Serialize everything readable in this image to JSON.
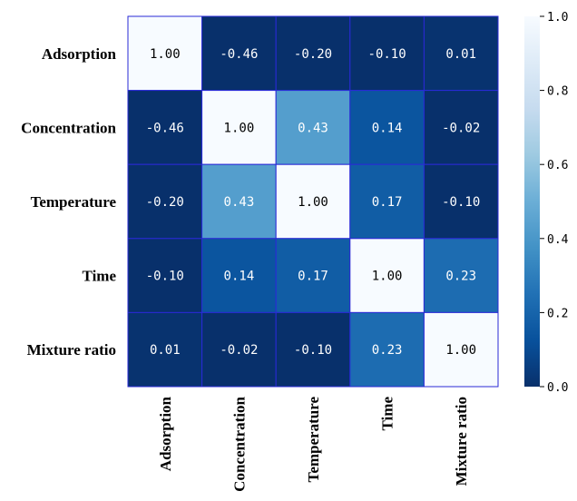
{
  "chart_data": {
    "type": "heatmap",
    "rows": [
      "Adsorption",
      "Concentration",
      "Temperature",
      "Time",
      "Mixture ratio"
    ],
    "columns": [
      "Adsorption",
      "Concentration",
      "Temperature",
      "Time",
      "Mixture ratio"
    ],
    "values": [
      [
        1.0,
        -0.46,
        -0.2,
        -0.1,
        0.01
      ],
      [
        -0.46,
        1.0,
        0.43,
        0.14,
        -0.02
      ],
      [
        -0.2,
        0.43,
        1.0,
        0.17,
        -0.1
      ],
      [
        -0.1,
        0.14,
        0.17,
        1.0,
        0.23
      ],
      [
        0.01,
        -0.02,
        -0.1,
        0.23,
        1.0
      ]
    ],
    "value_labels": [
      [
        "1.00",
        "-0.46",
        "-0.20",
        "-0.10",
        "0.01"
      ],
      [
        "-0.46",
        "1.00",
        "0.43",
        "0.14",
        "-0.02"
      ],
      [
        "-0.20",
        "0.43",
        "1.00",
        "0.17",
        "-0.10"
      ],
      [
        "-0.10",
        "0.14",
        "0.17",
        "1.00",
        "0.23"
      ],
      [
        "0.01",
        "-0.02",
        "-0.10",
        "0.23",
        "1.00"
      ]
    ],
    "colorbar": {
      "range": [
        0.0,
        1.0
      ],
      "ticks": [
        0.0,
        0.2,
        0.4,
        0.6,
        0.8,
        1.0
      ],
      "tick_labels": [
        "0.0",
        "0.2",
        "0.4",
        "0.6",
        "0.8",
        "1.0"
      ],
      "colormap": "Blues_r",
      "low_color": "#08306b",
      "high_color": "#f7fbff"
    },
    "cell_border_color": "#2a2ad6",
    "grid": false
  }
}
